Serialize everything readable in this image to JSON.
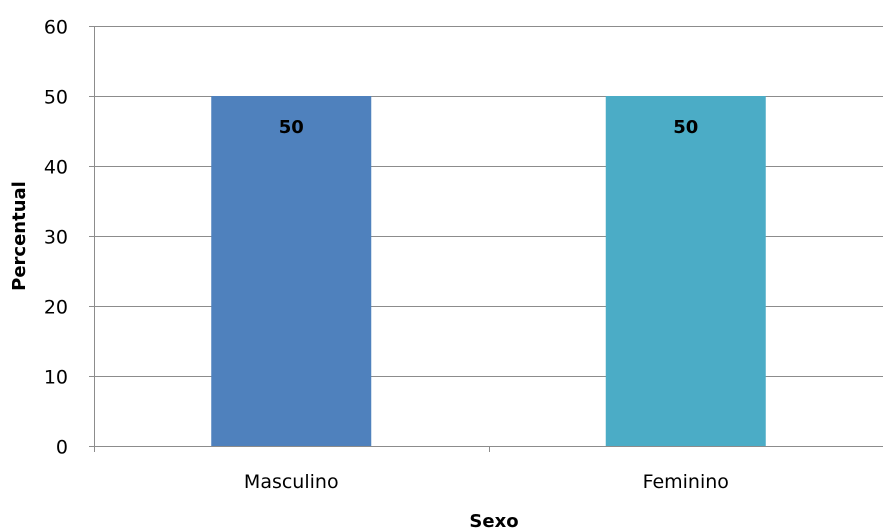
{
  "chart_data": {
    "type": "bar",
    "categories": [
      "Masculino",
      "Feminino"
    ],
    "values": [
      50,
      50
    ],
    "data_labels": [
      "50",
      "50"
    ],
    "bar_colors": [
      "#4f81bd",
      "#4bacc6"
    ],
    "title": "",
    "xlabel": "Sexo",
    "ylabel": "Percentual",
    "ylim": [
      0,
      60
    ],
    "yticks": [
      0,
      10,
      20,
      30,
      40,
      50,
      60
    ],
    "ytick_labels": [
      "0",
      "10",
      "20",
      "30",
      "40",
      "50",
      "60"
    ],
    "grid": true,
    "legend": "none"
  }
}
